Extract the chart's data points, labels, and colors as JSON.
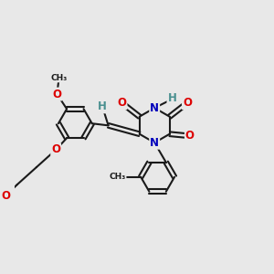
{
  "bg_color": "#e8e8e8",
  "bond_color": "#1a1a1a",
  "bond_width": 1.5,
  "dbo": 0.055,
  "atom_colors": {
    "O": "#dd0000",
    "N": "#0000bb",
    "H": "#4a9090",
    "C": "#1a1a1a"
  },
  "fs": 8.5
}
